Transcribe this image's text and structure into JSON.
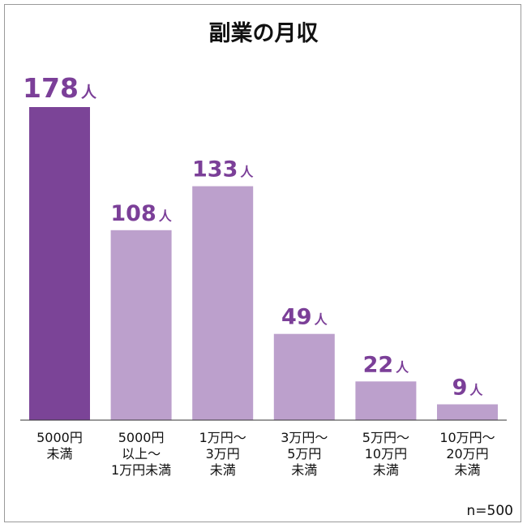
{
  "chart_data": {
    "type": "bar",
    "title": "副業の月収",
    "categories": [
      [
        "5000円",
        "未満"
      ],
      [
        "5000円",
        "以上～",
        "1万円未満"
      ],
      [
        "1万円～",
        "3万円",
        "未満"
      ],
      [
        "3万円～",
        "5万円",
        "未満"
      ],
      [
        "5万円～",
        "10万円",
        "未満"
      ],
      [
        "10万円～",
        "20万円",
        "未満"
      ]
    ],
    "values": [
      178,
      108,
      133,
      49,
      22,
      9
    ],
    "value_unit": "人",
    "highlight_index": 0,
    "ylim": [
      0,
      178
    ],
    "grid": false,
    "note": "n=500",
    "colors": {
      "highlight": "#7b4497",
      "bar": "#bca0cc",
      "label": "#7b3f98",
      "axis": "#333333"
    }
  }
}
